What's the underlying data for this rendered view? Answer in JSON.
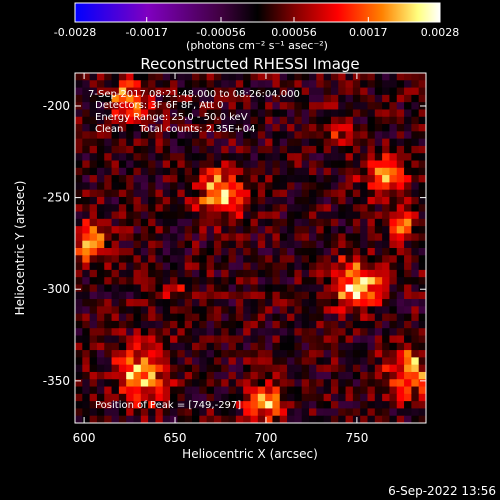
{
  "colorbar": {
    "ticks": [
      "-0.0028",
      "-0.0017",
      "-0.00056",
      "0.00056",
      "0.0017",
      "0.0028"
    ],
    "tick_values": [
      -0.0028,
      -0.0017,
      -0.00056,
      0.00056,
      0.0017,
      0.0028
    ],
    "range": [
      -0.0028,
      0.0028
    ],
    "units_label": "(photons cm⁻² s⁻¹ asec⁻²)",
    "colormap": [
      "#0000ff",
      "#8000c0",
      "#400040",
      "#000000",
      "#800000",
      "#ff0000",
      "#ff8000",
      "#ffff80",
      "#ffffff"
    ]
  },
  "title": "Reconstructed RHESSI Image",
  "annotations": {
    "time": "7-Sep-2017 08:21:48.000 to 08:26:04.000",
    "detectors": "Detectors: 3F 6F 8F, Att 0",
    "energy": "Energy Range: 25.0 - 50.0 keV",
    "clean": "Clean     Total counts: 2.35E+04",
    "peak": "Position of Peak = [749,-297]"
  },
  "footer_timestamp": "6-Sep-2022 13:56",
  "chart_data": {
    "type": "heatmap",
    "title": "Reconstructed RHESSI Image",
    "xlabel": "Heliocentric X (arcsec)",
    "ylabel": "Heliocentric Y (arcsec)",
    "xlim": [
      595,
      788
    ],
    "ylim": [
      -373,
      -182
    ],
    "x_ticks": [
      600,
      650,
      700,
      750
    ],
    "y_ticks": [
      -350,
      -300,
      -250,
      -200
    ],
    "x_tick_labels": [
      "600",
      "650",
      "700",
      "750"
    ],
    "y_tick_labels": [
      "-350",
      "-300",
      "-250",
      "-200"
    ],
    "value_units": "photons cm^-2 s^-1 asec^-2",
    "value_range": [
      -0.0028,
      0.0028
    ],
    "background_level": -0.0006,
    "sources": [
      {
        "x": 749,
        "y": -297,
        "peak": 0.0028,
        "sigma": 9
      },
      {
        "x": 675,
        "y": -248,
        "peak": 0.0026,
        "sigma": 9
      },
      {
        "x": 632,
        "y": -347,
        "peak": 0.0024,
        "sigma": 10
      },
      {
        "x": 625,
        "y": -197,
        "peak": 0.0023,
        "sigma": 7
      },
      {
        "x": 602,
        "y": -275,
        "peak": 0.0022,
        "sigma": 7
      },
      {
        "x": 765,
        "y": -237,
        "peak": 0.002,
        "sigma": 8
      },
      {
        "x": 778,
        "y": -345,
        "peak": 0.0022,
        "sigma": 9
      },
      {
        "x": 700,
        "y": -362,
        "peak": 0.0018,
        "sigma": 8
      },
      {
        "x": 738,
        "y": -212,
        "peak": 0.0012,
        "sigma": 6
      },
      {
        "x": 775,
        "y": -265,
        "peak": 0.0018,
        "sigma": 6
      },
      {
        "x": 650,
        "y": -300,
        "peak": 0.0008,
        "sigma": 6
      }
    ]
  }
}
